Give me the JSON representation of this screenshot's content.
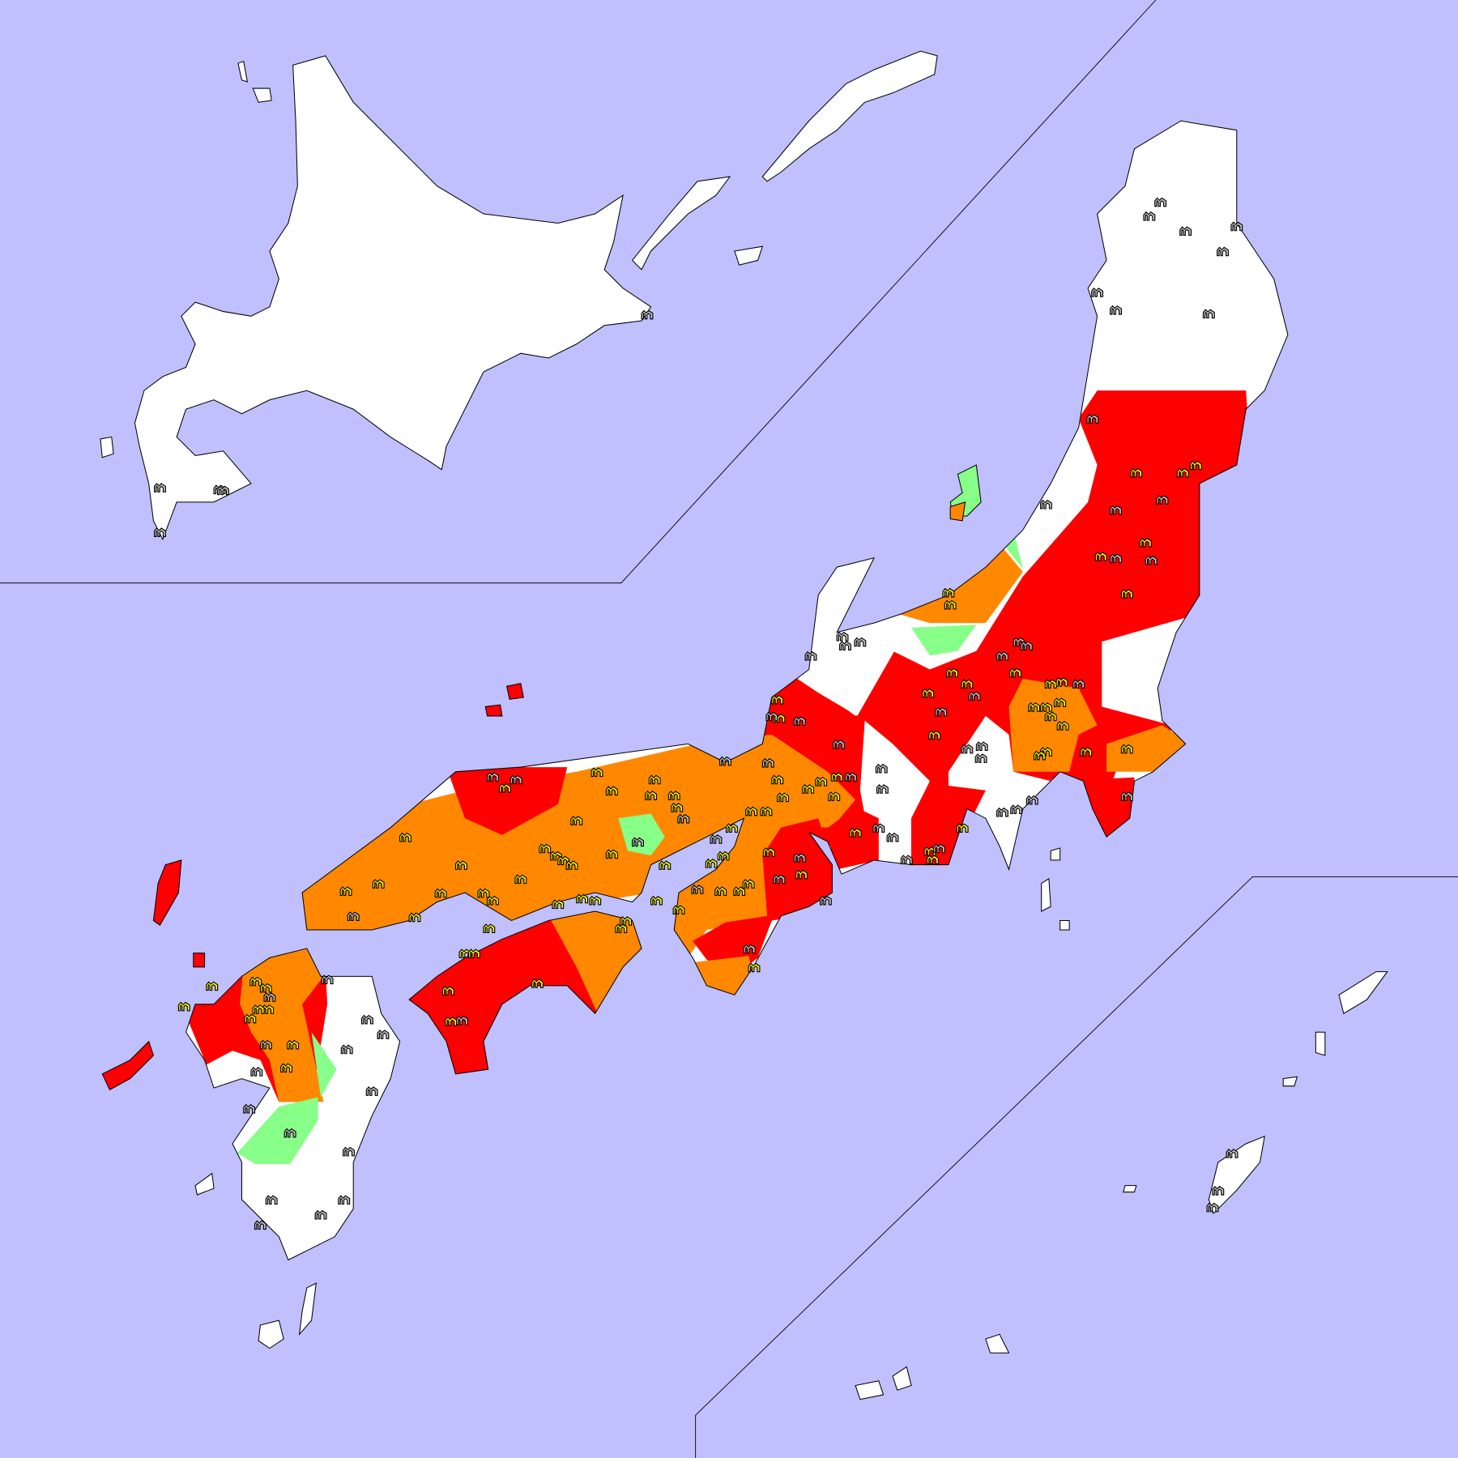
{
  "map": {
    "background_color": "#c0c0ff",
    "land_color": "#ffffff",
    "coastline_color": "#000000",
    "border_color": "#808080",
    "region_colors": {
      "red": "#ff0000",
      "orange": "#ff8800",
      "green": "#88ff88",
      "white": "#ffffff"
    },
    "markers": {
      "icon": "station-arch-icon",
      "types": [
        {
          "kind": "highlighted",
          "color": "#ffff00"
        },
        {
          "kind": "normal",
          "color": "#c8c8c8"
        }
      ]
    }
  }
}
